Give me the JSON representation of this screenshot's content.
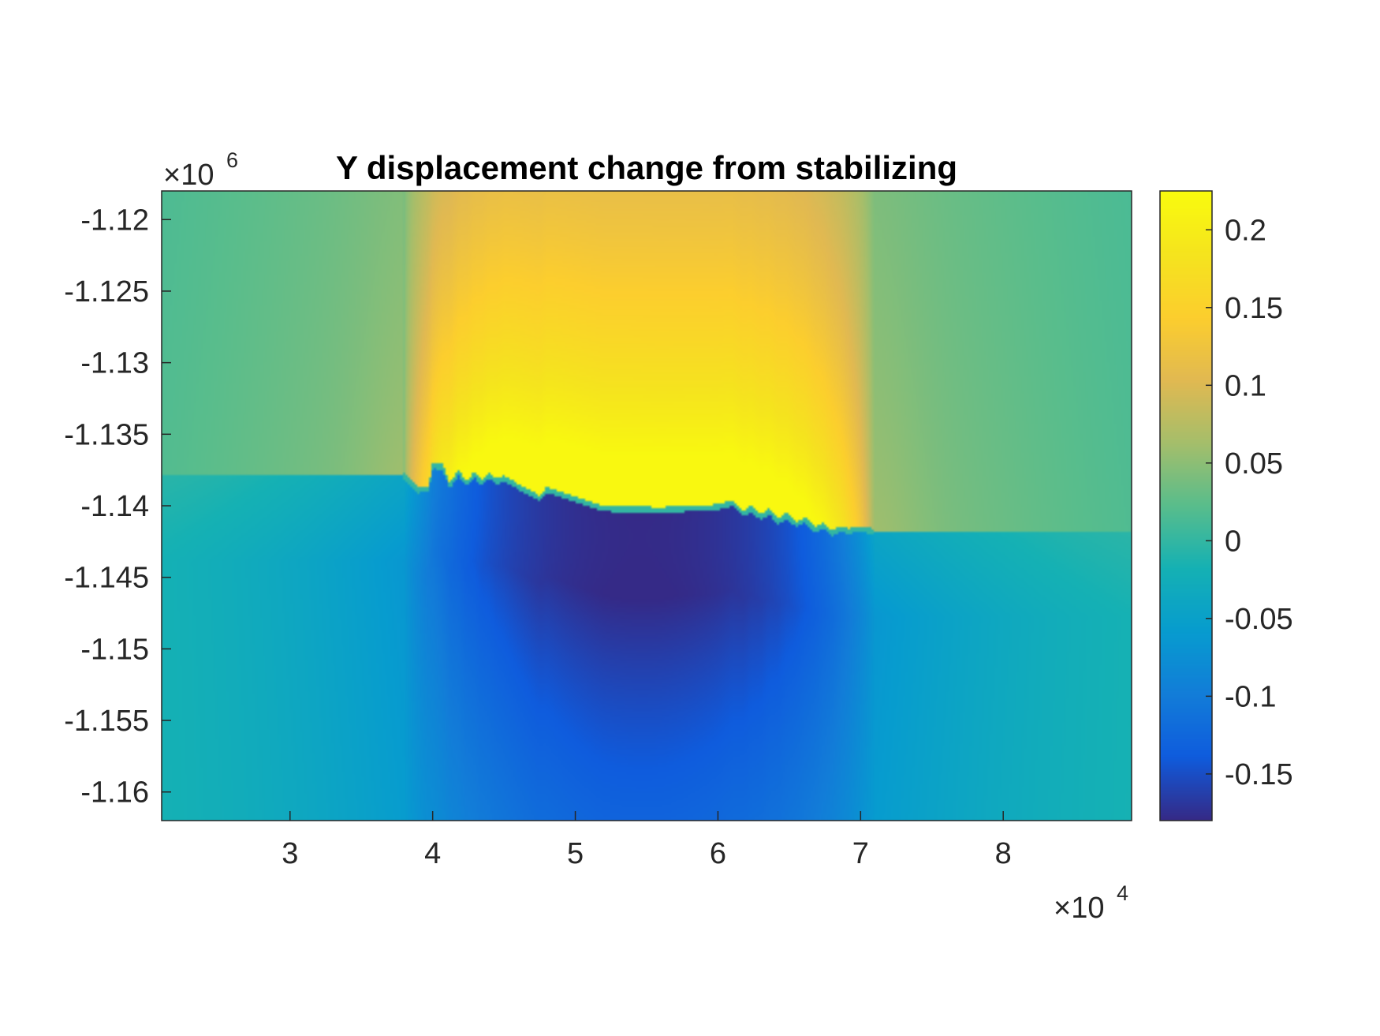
{
  "chart_data": {
    "type": "heatmap",
    "title": "Y displacement change from stabilizing",
    "colormap": "parula",
    "x_axis": {
      "range": [
        21000,
        89000
      ],
      "ticks": [
        30000,
        40000,
        50000,
        60000,
        70000,
        80000
      ],
      "tick_labels": [
        "3",
        "4",
        "5",
        "6",
        "7",
        "8"
      ],
      "multiplier_base": "×10",
      "multiplier_exp": "4"
    },
    "y_axis": {
      "range": [
        -1162000,
        -1118000
      ],
      "ticks": [
        -1120000,
        -1125000,
        -1130000,
        -1135000,
        -1140000,
        -1145000,
        -1150000,
        -1155000,
        -1160000
      ],
      "tick_labels": [
        "-1.12",
        "-1.125",
        "-1.13",
        "-1.135",
        "-1.14",
        "-1.145",
        "-1.15",
        "-1.155",
        "-1.16"
      ],
      "multiplier_base": "×10",
      "multiplier_exp": "6"
    },
    "colorbar": {
      "range": [
        -0.18,
        0.225
      ],
      "ticks": [
        0.2,
        0.15,
        0.1,
        0.05,
        0,
        -0.05,
        -0.1,
        -0.15
      ],
      "tick_labels": [
        "0.2",
        "0.15",
        "0.1",
        "0.05",
        "0",
        "-0.05",
        "-0.1",
        "-0.15"
      ]
    },
    "field": {
      "peak_value": 0.22,
      "trough_value": -0.18,
      "peak_location": [
        56000,
        -1140000
      ],
      "trough_location": [
        56000,
        -1141500
      ],
      "fault_trace": [
        [
          38000,
          -1137900
        ],
        [
          39000,
          -1138900
        ],
        [
          39700,
          -1138800
        ],
        [
          40000,
          -1137200
        ],
        [
          40700,
          -1137300
        ],
        [
          41200,
          -1138600
        ],
        [
          41800,
          -1137700
        ],
        [
          42400,
          -1138500
        ],
        [
          42900,
          -1137800
        ],
        [
          43400,
          -1138400
        ],
        [
          43900,
          -1137900
        ],
        [
          44500,
          -1138300
        ],
        [
          45000,
          -1138100
        ],
        [
          47500,
          -1139500
        ],
        [
          48000,
          -1138900
        ],
        [
          52000,
          -1140200
        ],
        [
          56000,
          -1140300
        ],
        [
          60000,
          -1140100
        ],
        [
          61000,
          -1139800
        ],
        [
          61800,
          -1140600
        ],
        [
          62300,
          -1140200
        ],
        [
          63000,
          -1140800
        ],
        [
          63600,
          -1140400
        ],
        [
          64200,
          -1141100
        ],
        [
          64800,
          -1140700
        ],
        [
          65500,
          -1141300
        ],
        [
          66100,
          -1141000
        ],
        [
          66800,
          -1141700
        ],
        [
          67400,
          -1141400
        ],
        [
          68000,
          -1141900
        ],
        [
          68700,
          -1141600
        ],
        [
          69200,
          -1141800
        ],
        [
          69800,
          -1141600
        ],
        [
          71000,
          -1141800
        ]
      ]
    }
  }
}
